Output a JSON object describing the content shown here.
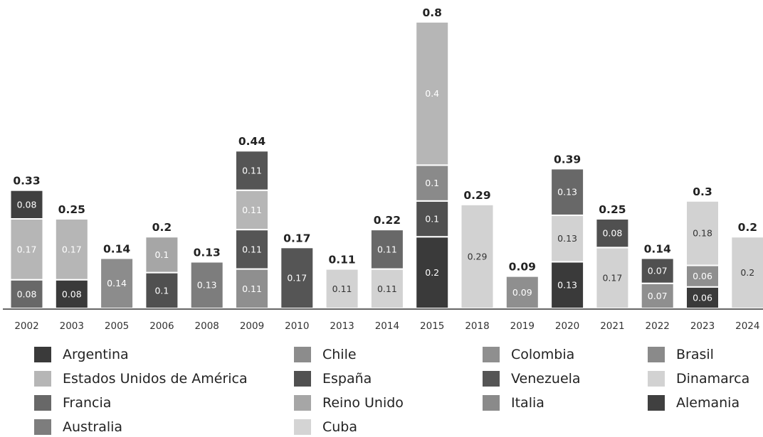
{
  "chart_data": {
    "type": "bar",
    "stacked": true,
    "categories": [
      "2002",
      "2003",
      "2005",
      "2006",
      "2008",
      "2009",
      "2010",
      "2013",
      "2014",
      "2015",
      "2018",
      "2019",
      "2020",
      "2021",
      "2022",
      "2023",
      "2024"
    ],
    "totals": [
      "0.33",
      "0.25",
      "0.14",
      "0.2",
      "0.13",
      "0.44",
      "0.17",
      "0.11",
      "0.22",
      "0.8",
      "0.29",
      "0.09",
      "0.39",
      "0.25",
      "0.14",
      "0.3",
      "0.2"
    ],
    "stacks": [
      [
        {
          "series": "Francia",
          "value": 0.08,
          "label": "0.08"
        },
        {
          "series": "Estados Unidos de América",
          "value": 0.17,
          "label": "0.17"
        },
        {
          "series": "Alemania",
          "value": 0.08,
          "label": "0.08"
        }
      ],
      [
        {
          "series": "Argentina",
          "value": 0.08,
          "label": "0.08"
        },
        {
          "series": "Estados Unidos de América",
          "value": 0.17,
          "label": "0.17"
        }
      ],
      [
        {
          "series": "Chile",
          "value": 0.14,
          "label": "0.14"
        }
      ],
      [
        {
          "series": "España",
          "value": 0.1,
          "label": "0.1"
        },
        {
          "series": "Reino Unido",
          "value": 0.1,
          "label": "0.1"
        }
      ],
      [
        {
          "series": "Australia",
          "value": 0.13,
          "label": "0.13"
        }
      ],
      [
        {
          "series": "Colombia",
          "value": 0.11,
          "label": "0.11"
        },
        {
          "series": "Venezuela",
          "value": 0.11,
          "label": "0.11"
        },
        {
          "series": "Estados Unidos de América",
          "value": 0.11,
          "label": "0.11"
        },
        {
          "series": "Venezuela",
          "value": 0.11,
          "label": "0.11"
        }
      ],
      [
        {
          "series": "Venezuela",
          "value": 0.17,
          "label": "0.17"
        }
      ],
      [
        {
          "series": "Dinamarca",
          "value": 0.11,
          "label": "0.11"
        }
      ],
      [
        {
          "series": "Dinamarca",
          "value": 0.11,
          "label": "0.11"
        },
        {
          "series": "Francia",
          "value": 0.11,
          "label": "0.11"
        }
      ],
      [
        {
          "series": "Argentina",
          "value": 0.2,
          "label": "0.2"
        },
        {
          "series": "España",
          "value": 0.1,
          "label": "0.1"
        },
        {
          "series": "Italia",
          "value": 0.1,
          "label": "0.1"
        },
        {
          "series": "Estados Unidos de América",
          "value": 0.4,
          "label": "0.4"
        }
      ],
      [
        {
          "series": "Dinamarca",
          "value": 0.29,
          "label": "0.29"
        }
      ],
      [
        {
          "series": "Colombia",
          "value": 0.09,
          "label": "0.09"
        }
      ],
      [
        {
          "series": "Argentina",
          "value": 0.13,
          "label": "0.13"
        },
        {
          "series": "Dinamarca",
          "value": 0.13,
          "label": "0.13"
        },
        {
          "series": "Francia",
          "value": 0.13,
          "label": "0.13"
        }
      ],
      [
        {
          "series": "Dinamarca",
          "value": 0.17,
          "label": "0.17"
        },
        {
          "series": "España",
          "value": 0.08,
          "label": "0.08"
        }
      ],
      [
        {
          "series": "Colombia",
          "value": 0.07,
          "label": "0.07"
        },
        {
          "series": "España",
          "value": 0.07,
          "label": "0.07"
        }
      ],
      [
        {
          "series": "Argentina",
          "value": 0.06,
          "label": "0.06"
        },
        {
          "series": "Colombia",
          "value": 0.06,
          "label": "0.06"
        },
        {
          "series": "Dinamarca",
          "value": 0.18,
          "label": "0.18"
        }
      ],
      [
        {
          "series": "Dinamarca",
          "value": 0.2,
          "label": "0.2"
        }
      ]
    ],
    "series": [
      {
        "name": "Argentina",
        "color": "#3a3a3a"
      },
      {
        "name": "Chile",
        "color": "#8c8c8c"
      },
      {
        "name": "Colombia",
        "color": "#8f8f8f"
      },
      {
        "name": "Brasil",
        "color": "#8a8a8a"
      },
      {
        "name": "Estados Unidos de América",
        "color": "#b6b6b6"
      },
      {
        "name": "España",
        "color": "#505050"
      },
      {
        "name": "Venezuela",
        "color": "#555555"
      },
      {
        "name": "Dinamarca",
        "color": "#d2d2d2"
      },
      {
        "name": "Francia",
        "color": "#686868"
      },
      {
        "name": "Reino Unido",
        "color": "#a6a6a6"
      },
      {
        "name": "Italia",
        "color": "#8a8a8a"
      },
      {
        "name": "Alemania",
        "color": "#404040"
      },
      {
        "name": "Australia",
        "color": "#7d7d7d"
      },
      {
        "name": "Cuba",
        "color": "#d4d4d4"
      }
    ],
    "ylim": [
      0,
      0.8
    ],
    "grid": false,
    "legend_position": "bottom",
    "colors": {
      "axis": "#333333",
      "tick_label": "#333333",
      "total_label": "#222222",
      "segment_border": "#ffffff"
    }
  }
}
